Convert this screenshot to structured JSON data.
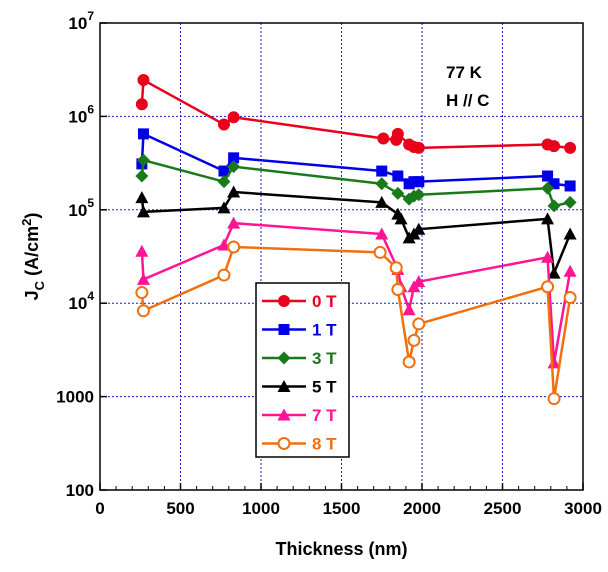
{
  "chart_data": {
    "type": "line",
    "xlabel": "Thickness (nm)",
    "ylabel_main": "J",
    "ylabel_sub": "C",
    "ylabel_unit_pre": " (A/cm",
    "ylabel_unit_sup": "2",
    "ylabel_unit_post": ")",
    "xlim": [
      0,
      3000
    ],
    "ylim": [
      100,
      10000000
    ],
    "yscale": "log",
    "grid": true,
    "legend_position": "center-left",
    "x_ticks": [
      "0",
      "500",
      "1000",
      "1500",
      "2000",
      "2500",
      "3000"
    ],
    "y_ticks": [
      {
        "label": "100",
        "base": "",
        "exp": ""
      },
      {
        "label": "1000",
        "base": "",
        "exp": ""
      },
      {
        "label": "",
        "base": "10",
        "exp": "4"
      },
      {
        "label": "",
        "base": "10",
        "exp": "5"
      },
      {
        "label": "",
        "base": "10",
        "exp": "6"
      },
      {
        "label": "",
        "base": "10",
        "exp": "7"
      }
    ],
    "annotations": [
      "77 K",
      "H // C"
    ],
    "series": [
      {
        "name": "0 T",
        "color": "#e8001c",
        "marker": "circle",
        "x": [
          260,
          270,
          770,
          830,
          1760,
          1840,
          1850,
          1920,
          1950,
          1980,
          2780,
          2820,
          2920
        ],
        "y": [
          1350000,
          2450000,
          820000,
          980000,
          580000,
          560000,
          650000,
          500000,
          470000,
          460000,
          500000,
          480000,
          460000
        ]
      },
      {
        "name": "1 T",
        "color": "#0000e6",
        "marker": "square",
        "x": [
          260,
          270,
          770,
          830,
          1750,
          1850,
          1920,
          1950,
          1980,
          2780,
          2820,
          2920
        ],
        "y": [
          310000,
          650000,
          260000,
          360000,
          260000,
          230000,
          190000,
          200000,
          200000,
          230000,
          190000,
          180000
        ]
      },
      {
        "name": "3 T",
        "color": "#1a7a1a",
        "marker": "diamond",
        "x": [
          260,
          270,
          770,
          830,
          1750,
          1850,
          1920,
          1950,
          1980,
          2780,
          2820,
          2920
        ],
        "y": [
          230000,
          340000,
          200000,
          290000,
          190000,
          150000,
          130000,
          140000,
          145000,
          170000,
          110000,
          120000
        ]
      },
      {
        "name": "5 T",
        "color": "#000000",
        "marker": "triangle",
        "x": [
          260,
          270,
          770,
          830,
          1750,
          1850,
          1870,
          1920,
          1950,
          1980,
          2780,
          2820,
          2920
        ],
        "y": [
          135000,
          95000,
          105000,
          155000,
          120000,
          90000,
          80000,
          50000,
          55000,
          62000,
          80000,
          21000,
          55000
        ]
      },
      {
        "name": "7 T",
        "color": "#ff1493",
        "marker": "triangle",
        "x": [
          260,
          270,
          770,
          830,
          1750,
          1850,
          1870,
          1920,
          1950,
          1980,
          2780,
          2820,
          2920
        ],
        "y": [
          36000,
          18000,
          42000,
          72000,
          55000,
          23000,
          15000,
          8500,
          15000,
          17000,
          31000,
          2300,
          22000
        ]
      },
      {
        "name": "8 T",
        "color": "#f07010",
        "marker": "circle-open",
        "x": [
          260,
          270,
          770,
          830,
          1740,
          1840,
          1850,
          1920,
          1950,
          1980,
          2780,
          2820,
          2920
        ],
        "y": [
          13000,
          8300,
          20000,
          40000,
          35000,
          24000,
          14000,
          2350,
          4000,
          6000,
          15000,
          950,
          11500
        ]
      }
    ]
  }
}
